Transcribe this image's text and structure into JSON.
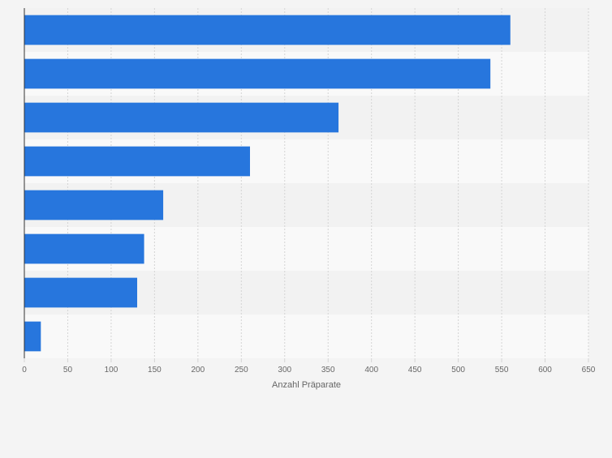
{
  "colors": {
    "bar": "#2776dd",
    "band_odd": "#f2f2f2",
    "band_even": "#f9f9f9",
    "grid": "#d4d4d4",
    "axis": "#333333",
    "tick_text": "#666666"
  },
  "chart_data": {
    "type": "bar",
    "orientation": "horizontal",
    "title": "",
    "categories": [
      "",
      "",
      "",
      "",
      "",
      "",
      "",
      ""
    ],
    "values": [
      560,
      537,
      362,
      260,
      160,
      138,
      130,
      19
    ],
    "xlabel": "Anzahl Präparate",
    "ylabel": "",
    "xlim": [
      0,
      650
    ],
    "xticks": [
      0,
      50,
      100,
      150,
      200,
      250,
      300,
      350,
      400,
      450,
      500,
      550,
      600,
      650
    ],
    "xtick_labels": [
      "0",
      "50",
      "100",
      "150",
      "200",
      "250",
      "300",
      "350",
      "400",
      "450",
      "500",
      "550",
      "600",
      "650"
    ],
    "grid": true
  }
}
